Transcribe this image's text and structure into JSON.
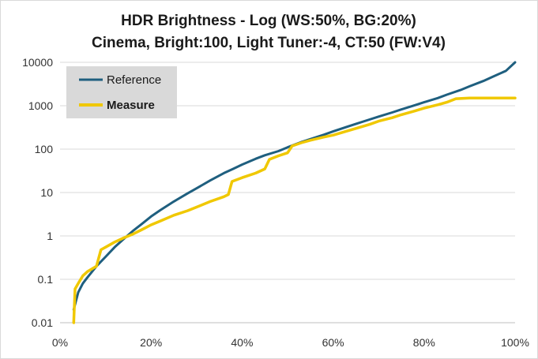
{
  "chart_data": {
    "type": "line",
    "title": "HDR Brightness - Log (WS:50%, BG:20%)",
    "subtitle": "Cinema, Bright:100, Light Tuner:-4, CT:50 (FW:V4)",
    "xlabel": "",
    "ylabel": "",
    "xlim": [
      0,
      100
    ],
    "ylim": [
      0.01,
      10000
    ],
    "y_scale": "log",
    "x_tick_labels": [
      "0%",
      "20%",
      "40%",
      "60%",
      "80%",
      "100%"
    ],
    "y_tick_labels": [
      "0.01",
      "0.1",
      "1",
      "10",
      "100",
      "1000",
      "10000"
    ],
    "grid": "horizontal",
    "legend": "top-left",
    "series": [
      {
        "name": "Reference",
        "color": "#1f5f7f",
        "x": [
          3,
          4,
          5,
          6,
          8,
          10,
          12,
          14,
          16,
          18,
          20,
          22,
          25,
          28,
          30,
          33,
          36,
          38,
          40,
          43,
          45,
          48,
          50,
          53,
          55,
          58,
          60,
          63,
          65,
          68,
          70,
          73,
          75,
          78,
          80,
          83,
          85,
          88,
          90,
          93,
          95,
          98,
          100
        ],
        "y": [
          0.02,
          0.05,
          0.08,
          0.11,
          0.2,
          0.33,
          0.55,
          0.85,
          1.3,
          1.9,
          2.8,
          3.9,
          6.2,
          9.5,
          12.5,
          19,
          28,
          35,
          44,
          60,
          72,
          90,
          110,
          145,
          170,
          215,
          255,
          325,
          380,
          480,
          560,
          700,
          820,
          1030,
          1200,
          1500,
          1800,
          2300,
          2800,
          3700,
          4600,
          6400,
          10000
        ]
      },
      {
        "name": "Measure",
        "color": "#f0c800",
        "x": [
          3,
          3.3,
          4,
          5,
          6,
          8,
          9,
          10,
          12,
          14,
          16,
          18,
          20,
          22,
          25,
          28,
          30,
          33,
          36,
          37,
          37.8,
          40,
          43,
          45,
          46,
          48,
          50,
          51,
          53,
          55,
          58,
          60,
          63,
          65,
          68,
          70,
          73,
          75,
          78,
          80,
          83,
          85,
          87,
          90,
          95,
          100
        ],
        "y": [
          0.01,
          0.06,
          0.08,
          0.12,
          0.15,
          0.2,
          0.48,
          0.55,
          0.72,
          0.9,
          1.1,
          1.4,
          1.8,
          2.2,
          3.0,
          3.8,
          4.6,
          6.2,
          8.0,
          9.0,
          18,
          22,
          28,
          35,
          58,
          70,
          82,
          118,
          140,
          160,
          190,
          210,
          260,
          300,
          370,
          440,
          530,
          620,
          760,
          880,
          1050,
          1200,
          1450,
          1500,
          1500,
          1500
        ]
      }
    ]
  }
}
